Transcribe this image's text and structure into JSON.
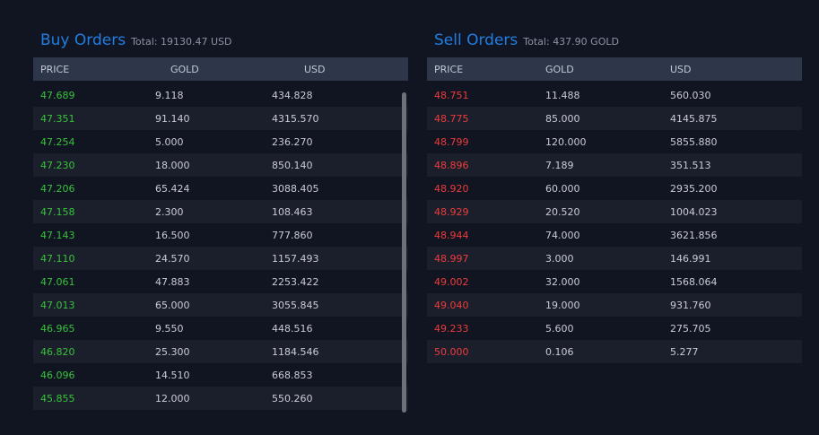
{
  "buy": {
    "title": "Buy Orders",
    "total_label": "Total:",
    "total_value": "19130.47 USD",
    "columns": [
      "PRICE",
      "GOLD",
      "USD"
    ],
    "rows": [
      [
        "47.689",
        "9.118",
        "434.828"
      ],
      [
        "47.351",
        "91.140",
        "4315.570"
      ],
      [
        "47.254",
        "5.000",
        "236.270"
      ],
      [
        "47.230",
        "18.000",
        "850.140"
      ],
      [
        "47.206",
        "65.424",
        "3088.405"
      ],
      [
        "47.158",
        "2.300",
        "108.463"
      ],
      [
        "47.143",
        "16.500",
        "777.860"
      ],
      [
        "47.110",
        "24.570",
        "1157.493"
      ],
      [
        "47.061",
        "47.883",
        "2253.422"
      ],
      [
        "47.013",
        "65.000",
        "3055.845"
      ],
      [
        "46.965",
        "9.550",
        "448.516"
      ],
      [
        "46.820",
        "25.300",
        "1184.546"
      ],
      [
        "46.096",
        "14.510",
        "668.853"
      ],
      [
        "45.855",
        "12.000",
        "550.260"
      ]
    ]
  },
  "sell": {
    "title": "Sell Orders",
    "total_label": "Total:",
    "total_value": "437.90 GOLD",
    "columns": [
      "PRICE",
      "GOLD",
      "USD"
    ],
    "rows": [
      [
        "48.751",
        "11.488",
        "560.030"
      ],
      [
        "48.775",
        "85.000",
        "4145.875"
      ],
      [
        "48.799",
        "120.000",
        "5855.880"
      ],
      [
        "48.896",
        "7.189",
        "351.513"
      ],
      [
        "48.920",
        "60.000",
        "2935.200"
      ],
      [
        "48.929",
        "20.520",
        "1004.023"
      ],
      [
        "48.944",
        "74.000",
        "3621.856"
      ],
      [
        "48.997",
        "3.000",
        "146.991"
      ],
      [
        "49.002",
        "32.000",
        "1568.064"
      ],
      [
        "49.040",
        "19.000",
        "931.760"
      ],
      [
        "49.233",
        "5.600",
        "275.705"
      ],
      [
        "50.000",
        "0.106",
        "5.277"
      ]
    ]
  },
  "colors": {
    "background": "#111522",
    "title": "#1f7ee0",
    "buy_price": "#37c23a",
    "sell_price": "#ee3b3b",
    "header_bg": "#2e364a"
  }
}
